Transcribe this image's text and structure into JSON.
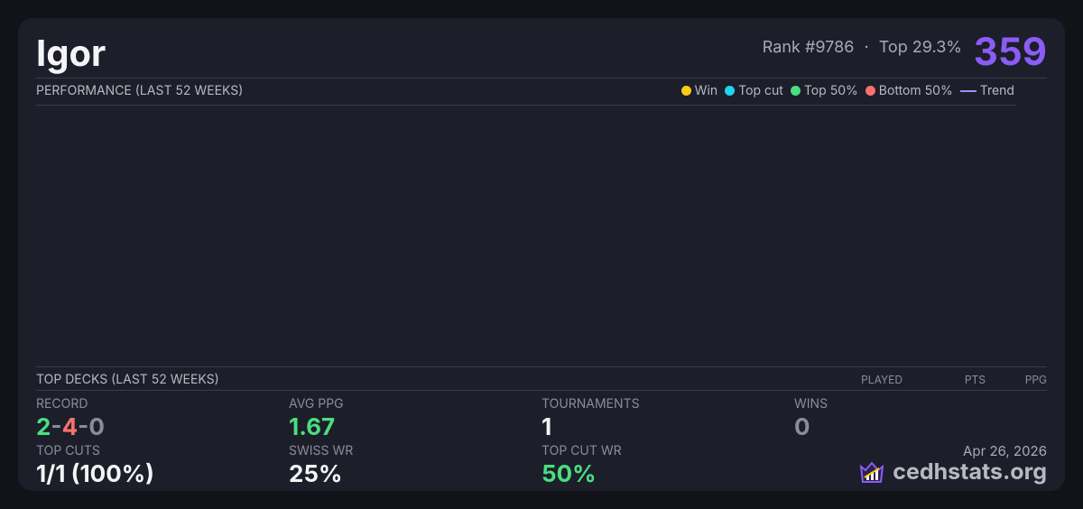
{
  "header": {
    "name": "Igor",
    "rank": "Rank #9786",
    "separator": "·",
    "percentile": "Top 29.3%",
    "score": "359"
  },
  "performance": {
    "title": "PERFORMANCE (LAST 52 WEEKS)",
    "legend": [
      "Win",
      "Top cut",
      "Top 50%",
      "Bottom 50%",
      "Trend"
    ]
  },
  "top_decks": {
    "title": "TOP DECKS (LAST 52 WEEKS)",
    "columns": [
      "PLAYED",
      "PTS",
      "PPG"
    ]
  },
  "stats": {
    "record": {
      "label": "RECORD",
      "wins": "2",
      "separator": "-",
      "losses": "4",
      "draws": "0"
    },
    "avg_ppg": {
      "label": "AVG PPG",
      "value": "1.67"
    },
    "tournaments": {
      "label": "TOURNAMENTS",
      "value": "1"
    },
    "wins": {
      "label": "WINS",
      "value": "0"
    },
    "top_cuts": {
      "label": "TOP CUTS",
      "value": "1/1 (100%)"
    },
    "swiss_wr": {
      "label": "SWISS WR",
      "value": "25%"
    },
    "top_cut_wr": {
      "label": "TOP CUT WR",
      "value": "50%"
    }
  },
  "footer": {
    "date": "Apr 26, 2026",
    "brand": "cedhstats.org"
  }
}
